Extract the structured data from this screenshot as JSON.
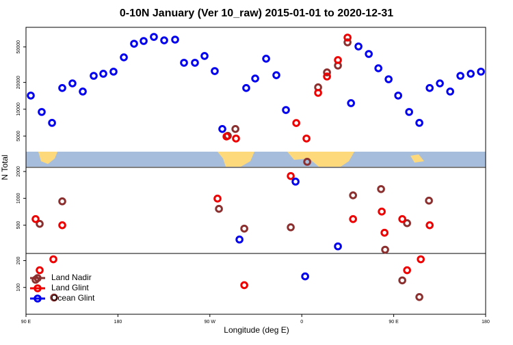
{
  "chart_data": {
    "type": "scatter",
    "title": "0-10N January (Ver 10_raw)   2015-01-01 to 2020-12-31",
    "xlabel": "Longitude (deg E)",
    "ylabel": "N Total",
    "xlim": [
      90,
      540
    ],
    "ylim": [
      50,
      83000
    ],
    "ylog": true,
    "grid": false,
    "legend": "bottomleft",
    "xticks": [
      {
        "value": 90,
        "label": "90 E"
      },
      180,
      {
        "value": 270,
        "label": "90 W"
      },
      {
        "value": 360,
        "label": "0"
      },
      {
        "value": 450,
        "label": "90 E"
      },
      {
        "value": 540,
        "label": "180"
      }
    ],
    "yticks": [
      100,
      200,
      500,
      1000,
      2000,
      5000,
      10000,
      20000,
      50000
    ],
    "series": [
      {
        "name": "Land Nadir",
        "color": "#8b2f2f",
        "x": [
          287.6,
          295,
          376,
          384.7,
          395.4,
          404.8,
          365.3,
          125.5,
          278.9,
          303.7,
          349.2,
          410.2,
          437.6,
          463.1,
          484.5,
          441.6,
          99.4,
          117.5,
          458.4,
          475.1,
          103.4
        ],
        "values": [
          5030,
          6000,
          17600,
          25900,
          30900,
          56300,
          2570,
          925,
          762,
          457,
          473,
          1080,
          1270,
          526,
          942,
          265,
          122,
          77,
          120,
          78,
          517
        ]
      },
      {
        "name": "Land Glint",
        "color": "#ee0000",
        "x": [
          286.3,
          295.6,
          354.6,
          364.6,
          376,
          384.7,
          395.4,
          404.8,
          349.2,
          277.5,
          410.2,
          438.3,
          441,
          458.4,
          99.4,
          125.5,
          485.2,
          103.4,
          116.8,
          303.7,
          463.1,
          476.5
        ],
        "values": [
          4940,
          4690,
          7000,
          4690,
          15270,
          23300,
          35600,
          63700,
          1780,
          993,
          585,
          710,
          411,
          585,
          585,
          499,
          499,
          156,
          207,
          106,
          156,
          207
        ]
      },
      {
        "name": "Ocean Glint",
        "color": "#0000ee",
        "x": [
          94.7,
          105.4,
          115.5,
          125.5,
          135.5,
          145.6,
          156.3,
          165.7,
          175.7,
          185.8,
          195.8,
          205.2,
          215.2,
          225.3,
          236,
          244.7,
          255.4,
          264.8,
          274.8,
          282.2,
          305.6,
          314.4,
          325.1,
          335.1,
          344.5,
          353.9,
          408.2,
          415.5,
          425.6,
          435,
          445,
          454.4,
          465.1,
          475.1,
          485.2,
          495.2,
          505.3,
          515.3,
          525.4,
          535.4,
          299,
          395.4,
          363.3
        ],
        "values": [
          14230,
          9320,
          7030,
          17300,
          19500,
          15800,
          23700,
          25000,
          26400,
          38200,
          54300,
          58300,
          64800,
          59300,
          60400,
          33200,
          33200,
          39600,
          26800,
          6000,
          17300,
          22100,
          36900,
          24100,
          9800,
          1540,
          11700,
          50600,
          41700,
          28800,
          21700,
          14230,
          9320,
          7030,
          17300,
          19500,
          15800,
          23700,
          25000,
          26400,
          345,
          289,
          133
        ]
      }
    ]
  }
}
